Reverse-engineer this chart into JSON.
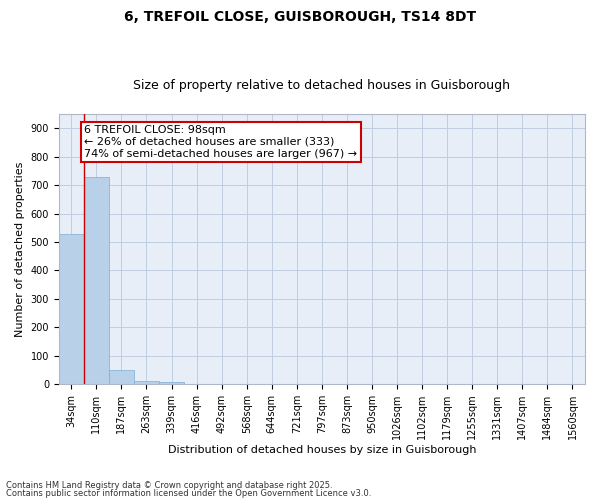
{
  "title": "6, TREFOIL CLOSE, GUISBOROUGH, TS14 8DT",
  "subtitle": "Size of property relative to detached houses in Guisborough",
  "xlabel": "Distribution of detached houses by size in Guisborough",
  "ylabel": "Number of detached properties",
  "categories": [
    "34sqm",
    "110sqm",
    "187sqm",
    "263sqm",
    "339sqm",
    "416sqm",
    "492sqm",
    "568sqm",
    "644sqm",
    "721sqm",
    "797sqm",
    "873sqm",
    "950sqm",
    "1026sqm",
    "1102sqm",
    "1179sqm",
    "1255sqm",
    "1331sqm",
    "1407sqm",
    "1484sqm",
    "1560sqm"
  ],
  "values": [
    528,
    727,
    48,
    10,
    8,
    0,
    0,
    0,
    0,
    0,
    0,
    0,
    0,
    0,
    0,
    0,
    0,
    0,
    0,
    0,
    0
  ],
  "bar_color": "#b8d0e8",
  "bar_edge_color": "#7aafd4",
  "ylim": [
    0,
    950
  ],
  "yticks": [
    0,
    100,
    200,
    300,
    400,
    500,
    600,
    700,
    800,
    900
  ],
  "annotation_text": "6 TREFOIL CLOSE: 98sqm\n← 26% of detached houses are smaller (333)\n74% of semi-detached houses are larger (967) →",
  "annotation_box_color": "#ffffff",
  "annotation_box_edge": "#cc0000",
  "vline_color": "#cc0000",
  "footer_line1": "Contains HM Land Registry data © Crown copyright and database right 2025.",
  "footer_line2": "Contains public sector information licensed under the Open Government Licence v3.0.",
  "bg_color": "#e8eef8",
  "grid_color": "#c0cce0",
  "title_fontsize": 10,
  "subtitle_fontsize": 9,
  "tick_fontsize": 7,
  "ylabel_fontsize": 8,
  "xlabel_fontsize": 8,
  "footer_fontsize": 6,
  "annot_fontsize": 8
}
